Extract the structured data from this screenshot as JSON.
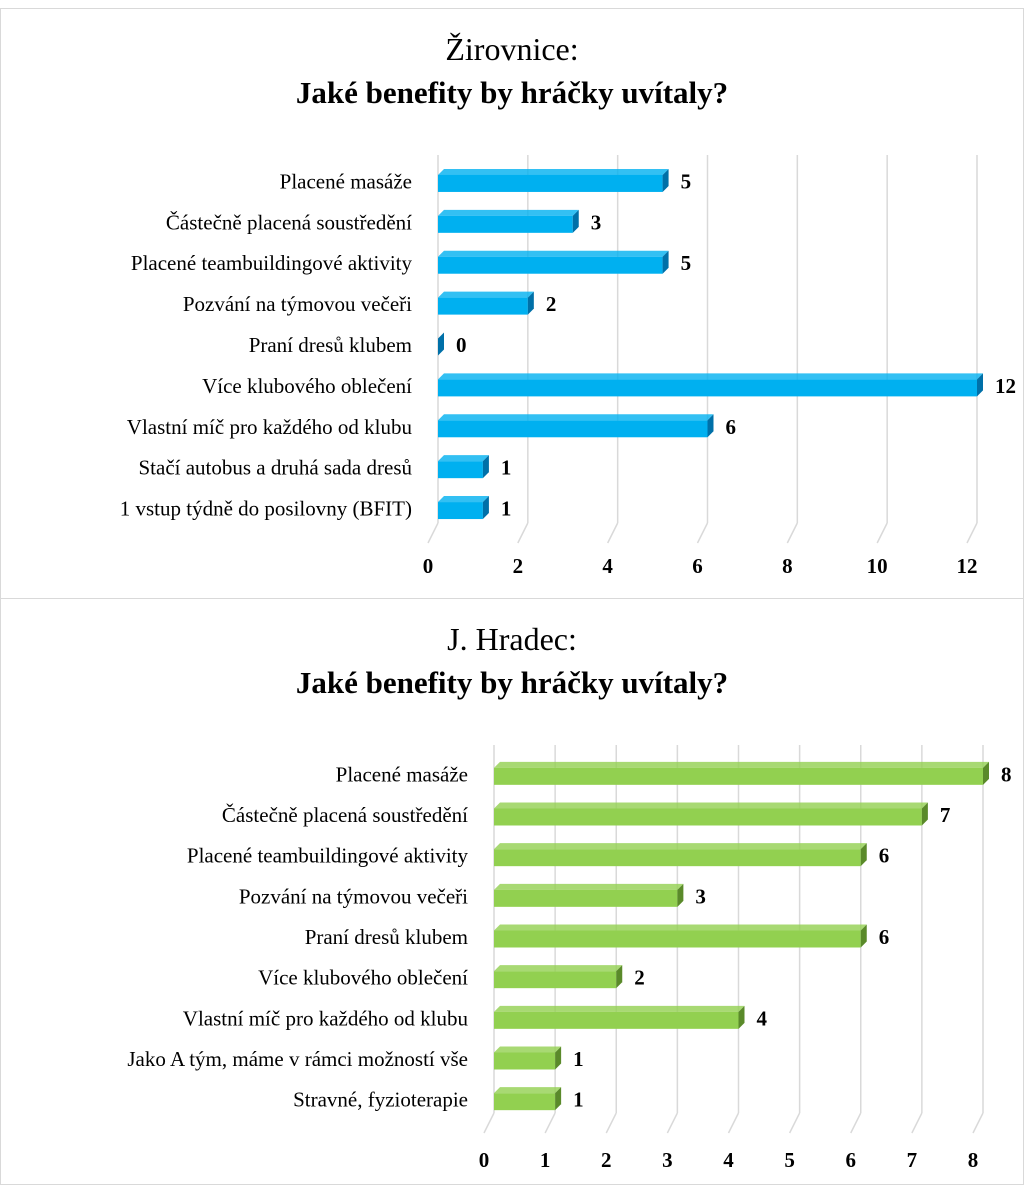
{
  "chart_data": [
    {
      "type": "bar",
      "orientation": "horizontal",
      "title_line1": "Žirovnice:",
      "title_line2": "Jaké benefity by hráčky uvítaly?",
      "categories": [
        "Placené masáže",
        "Částečně placená soustředění",
        "Placené teambuildingové aktivity",
        "Pozvání na týmovou večeři",
        "Praní dresů klubem",
        "Více klubového oblečení",
        "Vlastní míč pro každého od klubu",
        "Stačí autobus a druhá sada dresů",
        "1 vstup týdně do posilovny (BFIT)"
      ],
      "values": [
        5,
        3,
        5,
        2,
        0,
        12,
        6,
        1,
        1
      ],
      "data_labels": [
        "5",
        "3",
        "5",
        "2",
        "0",
        "12",
        "6",
        "1",
        "1"
      ],
      "xticks": [
        "0",
        "2",
        "4",
        "6",
        "8",
        "10",
        "12"
      ],
      "xlim": [
        0,
        12
      ],
      "bar_color": "#00b0f0",
      "bar_shade": "#0070a8",
      "grid": true
    },
    {
      "type": "bar",
      "orientation": "horizontal",
      "title_line1": "J. Hradec:",
      "title_line2": "Jaké benefity by hráčky uvítaly?",
      "categories": [
        "Placené masáže",
        "Částečně placená soustředění",
        "Placené teambuildingové aktivity",
        "Pozvání na týmovou večeři",
        "Praní dresů klubem",
        "Více klubového oblečení",
        "Vlastní míč pro každého od klubu",
        "Jako A tým, máme v rámci možností vše",
        "Stravné, fyzioterapie"
      ],
      "values": [
        8,
        7,
        6,
        3,
        6,
        2,
        4,
        1,
        1
      ],
      "data_labels": [
        "8",
        "7",
        "6",
        "3",
        "6",
        "2",
        "4",
        "1",
        "1"
      ],
      "xticks": [
        "0",
        "1",
        "2",
        "3",
        "4",
        "5",
        "6",
        "7",
        "8"
      ],
      "xlim": [
        0,
        8
      ],
      "bar_color": "#92d050",
      "bar_shade": "#5a8a2a",
      "grid": true
    }
  ]
}
